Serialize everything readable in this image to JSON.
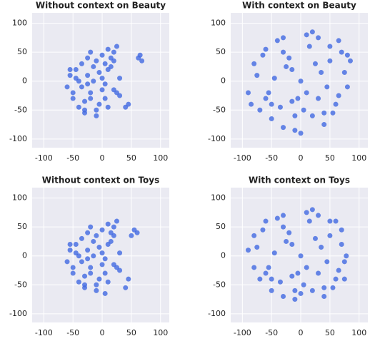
{
  "chart_data": [
    {
      "type": "scatter",
      "title": "Without context on Beauty",
      "color": "#4169e1",
      "x": [
        -60,
        -55,
        -50,
        -45,
        -40,
        -35,
        -30,
        -25,
        -20,
        -15,
        -10,
        -5,
        0,
        5,
        10,
        15,
        20,
        25,
        30,
        -50,
        -40,
        -30,
        -20,
        -10,
        0,
        10,
        20,
        30,
        -45,
        -35,
        -25,
        -15,
        -5,
        5,
        15,
        25,
        -30,
        -20,
        -10,
        0,
        10,
        20,
        65,
        68,
        62,
        40,
        45,
        -55,
        -25,
        5
      ],
      "y": [
        -10,
        10,
        -30,
        20,
        -45,
        30,
        -55,
        40,
        -20,
        0,
        -60,
        15,
        45,
        -30,
        55,
        25,
        -15,
        60,
        5,
        -20,
        0,
        -35,
        50,
        -50,
        -15,
        20,
        35,
        -25,
        5,
        -10,
        10,
        25,
        -40,
        -5,
        40,
        -20,
        -50,
        -30,
        35,
        5,
        -45,
        50,
        45,
        35,
        40,
        -45,
        -40,
        20,
        -5,
        30
      ],
      "xlim": [
        -120,
        115
      ],
      "ylim": [
        -115,
        118
      ],
      "xticks": [
        -100,
        -50,
        0,
        50,
        100
      ],
      "yticks": [
        -100,
        -50,
        0,
        50,
        100
      ],
      "grid": true
    },
    {
      "type": "scatter",
      "title": "With context on Beauty",
      "color": "#4169e1",
      "x": [
        -90,
        -80,
        -70,
        -60,
        -50,
        -40,
        -30,
        -20,
        -10,
        0,
        10,
        20,
        30,
        40,
        50,
        60,
        70,
        80,
        85,
        -75,
        -55,
        -35,
        -15,
        5,
        25,
        45,
        65,
        -65,
        -45,
        -25,
        -5,
        15,
        35,
        55,
        75,
        -50,
        -30,
        -10,
        10,
        30,
        50,
        -30,
        -15,
        40,
        65,
        80,
        -85,
        -60,
        0,
        20
      ],
      "y": [
        -20,
        30,
        -50,
        55,
        -65,
        70,
        -80,
        40,
        -85,
        0,
        80,
        -60,
        75,
        -75,
        60,
        -40,
        50,
        -10,
        35,
        10,
        -20,
        -45,
        20,
        -50,
        30,
        -10,
        -25,
        45,
        5,
        25,
        -30,
        60,
        15,
        -55,
        15,
        -40,
        50,
        -60,
        -20,
        -30,
        35,
        75,
        -35,
        -55,
        70,
        45,
        -40,
        -30,
        -90,
        85
      ],
      "xlim": [
        -120,
        115
      ],
      "ylim": [
        -115,
        118
      ],
      "xticks": [
        -100,
        -50,
        0,
        50,
        100
      ],
      "yticks": [
        -100,
        -50,
        0,
        50,
        100
      ],
      "grid": true
    },
    {
      "type": "scatter",
      "title": "Without context on Toys",
      "color": "#4169e1",
      "x": [
        -60,
        -55,
        -50,
        -45,
        -40,
        -35,
        -30,
        -25,
        -20,
        -15,
        -10,
        -5,
        0,
        5,
        10,
        15,
        20,
        25,
        30,
        -50,
        -40,
        -30,
        -20,
        -10,
        0,
        10,
        20,
        30,
        -45,
        -35,
        -25,
        -15,
        -5,
        5,
        15,
        25,
        -30,
        -20,
        -10,
        0,
        10,
        20,
        55,
        60,
        50,
        40,
        45,
        -55,
        -25,
        5
      ],
      "y": [
        -10,
        10,
        -30,
        20,
        -45,
        30,
        -55,
        40,
        -20,
        0,
        -60,
        15,
        45,
        -30,
        55,
        25,
        -15,
        60,
        5,
        -20,
        0,
        -35,
        50,
        -50,
        -15,
        20,
        35,
        -25,
        5,
        -10,
        10,
        25,
        -40,
        -5,
        40,
        -20,
        -50,
        -30,
        35,
        5,
        -45,
        50,
        45,
        40,
        35,
        -55,
        -40,
        20,
        -5,
        -65
      ],
      "xlim": [
        -120,
        115
      ],
      "ylim": [
        -115,
        118
      ],
      "xticks": [
        -100,
        -50,
        0,
        50,
        100
      ],
      "yticks": [
        -100,
        -50,
        0,
        50,
        100
      ],
      "grid": true
    },
    {
      "type": "scatter",
      "title": "With context on Toys",
      "color": "#4169e1",
      "x": [
        -90,
        -80,
        -70,
        -60,
        -50,
        -40,
        -30,
        -20,
        -10,
        0,
        10,
        20,
        30,
        40,
        50,
        60,
        70,
        75,
        78,
        -75,
        -55,
        -35,
        -15,
        5,
        25,
        45,
        65,
        -65,
        -45,
        -25,
        -5,
        15,
        35,
        55,
        70,
        -50,
        -30,
        -10,
        10,
        30,
        50,
        -30,
        -15,
        40,
        60,
        75,
        -80,
        -60,
        0,
        20
      ],
      "y": [
        10,
        35,
        -40,
        60,
        -60,
        65,
        -70,
        40,
        -75,
        0,
        75,
        -60,
        70,
        -70,
        60,
        -40,
        45,
        -10,
        0,
        15,
        -20,
        -45,
        20,
        -50,
        30,
        -10,
        -25,
        45,
        5,
        25,
        -30,
        60,
        15,
        -55,
        20,
        -40,
        50,
        -60,
        -20,
        -30,
        35,
        70,
        -35,
        -55,
        60,
        -40,
        -20,
        -30,
        -65,
        80
      ],
      "xlim": [
        -120,
        115
      ],
      "ylim": [
        -115,
        118
      ],
      "xticks": [
        -100,
        -50,
        0,
        50,
        100
      ],
      "yticks": [
        -100,
        -50,
        0,
        50,
        100
      ],
      "grid": true
    }
  ]
}
